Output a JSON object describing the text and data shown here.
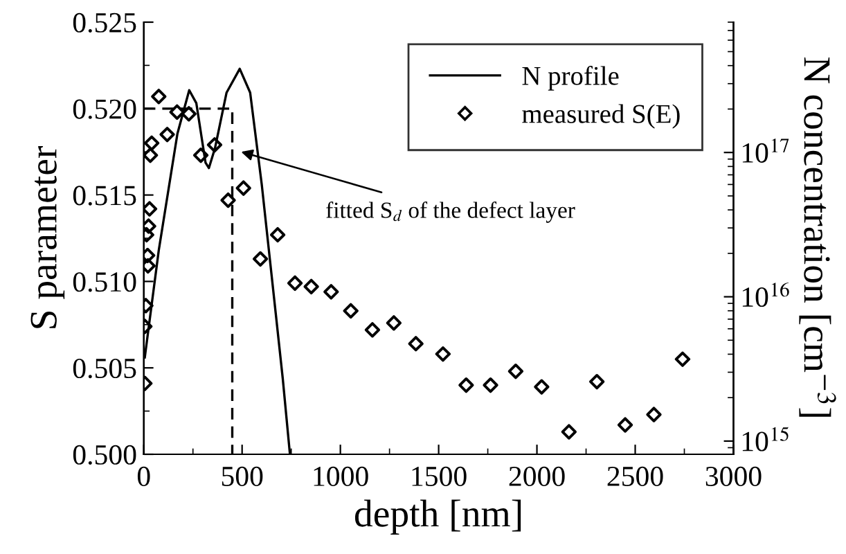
{
  "chart_data": {
    "type": "scatter",
    "xlabel": "depth [nm]",
    "ylabel": "S parameter",
    "y2label": "N concentration [cm$^{−3}$]",
    "xlim": [
      0,
      3000
    ],
    "xticks": [
      0,
      500,
      1000,
      1500,
      2000,
      2500,
      3000
    ],
    "ylim": [
      0.5,
      0.525
    ],
    "yticks": [
      {
        "value": 0.5,
        "label": "0.500"
      },
      {
        "value": 0.505,
        "label": "0.505"
      },
      {
        "value": 0.51,
        "label": "0.510"
      },
      {
        "value": 0.515,
        "label": "0.515"
      },
      {
        "value": 0.52,
        "label": "0.520"
      },
      {
        "value": 0.525,
        "label": "0.525"
      }
    ],
    "log": "y2",
    "y2lim": [
      810000000000000.0,
      8e+17
    ],
    "y2ticks": [
      {
        "value": 1000000000000000.0,
        "label": "10$^{15}$"
      },
      {
        "value": 1e+16,
        "label": "10$^{16}$"
      },
      {
        "value": 1e+17,
        "label": "10$^{17}$"
      }
    ],
    "grid": false,
    "legend": "top right",
    "series": [
      {
        "name": "N profile",
        "type": "line",
        "axis": "y2",
        "color": "#000000",
        "marker": "none",
        "line_style": "solid",
        "x": [
          5,
          10,
          76,
          171,
          231,
          267,
          314,
          331,
          362,
          421,
          488,
          541,
          600,
          671,
          707,
          743
        ],
        "values": [
          3800000000000000.0,
          4300000000000000.0,
          2.1e+16,
          1.35e+17,
          2.7e+17,
          2.2e+17,
          8.5e+16,
          7.8e+16,
          1.07e+17,
          2.6e+17,
          3.8e+17,
          2.6e+17,
          6e+16,
          7700000000000000.0,
          2700000000000000.0,
          820000000000000.0
        ]
      },
      {
        "name": "measured S(E)",
        "color": "#000000",
        "marker": "diamond",
        "x": [
          5,
          5,
          10,
          21,
          19,
          14,
          24,
          29,
          33,
          40,
          76,
          119,
          169,
          229,
          290,
          360,
          429,
          507,
          593,
          681,
          769,
          852,
          953,
          1053,
          1163,
          1272,
          1384,
          1522,
          1640,
          1764,
          1892,
          2024,
          2163,
          2305,
          2449,
          2595,
          2741
        ],
        "values": [
          0.5041,
          0.5074,
          0.5086,
          0.5109,
          0.5115,
          0.5127,
          0.5132,
          0.5142,
          0.5173,
          0.518,
          0.5207,
          0.5185,
          0.5198,
          0.5197,
          0.5173,
          0.5179,
          0.5147,
          0.5154,
          0.5113,
          0.5127,
          0.5099,
          0.5097,
          0.5094,
          0.5083,
          0.5072,
          0.5076,
          0.5064,
          0.5058,
          0.504,
          0.504,
          0.5048,
          0.5039,
          0.5013,
          0.5042,
          0.5017,
          0.5023,
          0.5055
        ]
      },
      {
        "type": "line",
        "color": "#000000",
        "marker": "none",
        "line_style": "dashed",
        "x": [
          0,
          450,
          450
        ],
        "values": [
          0.52,
          0.52,
          0.5
        ]
      }
    ],
    "annotations": [
      "fitted S$_{d}$ of the defect layer"
    ]
  }
}
